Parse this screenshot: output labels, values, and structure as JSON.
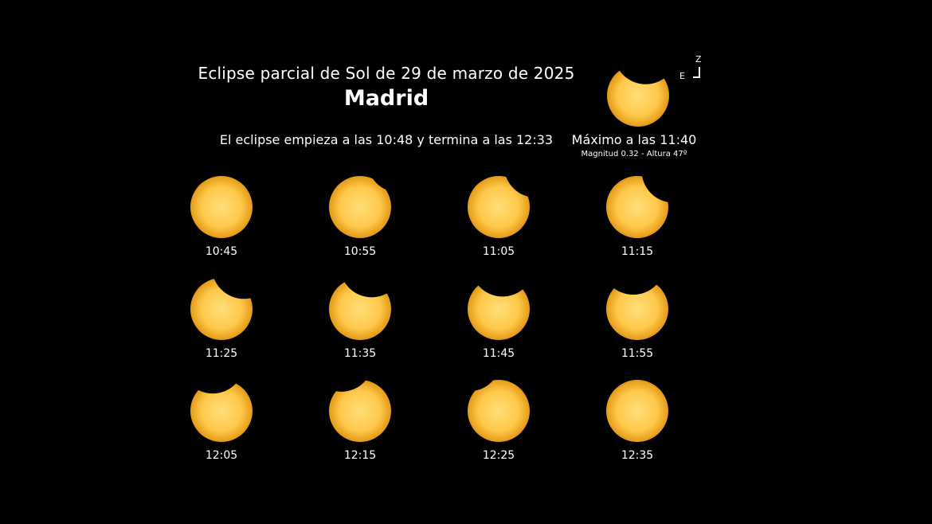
{
  "title": "Eclipse parcial de Sol de 29 de marzo de 2025",
  "city": "Madrid",
  "span_text": "El eclipse empieza a las 10:48 y termina a las 12:33",
  "maximum": {
    "time_text": "Máximo a las 11:40",
    "details_text": "Magnitud 0.32 - Altura 47º",
    "coverage": 0.32
  },
  "orientation": {
    "north": "Z",
    "east": "E"
  },
  "colors": {
    "sun_center": "#ffdf7a",
    "sun_edge": "#e39a16",
    "background": "#000000"
  },
  "phases": [
    {
      "time": "10:45",
      "coverage": 0.0
    },
    {
      "time": "10:55",
      "coverage": 0.05
    },
    {
      "time": "11:05",
      "coverage": 0.13
    },
    {
      "time": "11:15",
      "coverage": 0.2
    },
    {
      "time": "11:25",
      "coverage": 0.26
    },
    {
      "time": "11:35",
      "coverage": 0.3
    },
    {
      "time": "11:45",
      "coverage": 0.31
    },
    {
      "time": "11:55",
      "coverage": 0.28
    },
    {
      "time": "12:05",
      "coverage": 0.22
    },
    {
      "time": "12:15",
      "coverage": 0.15
    },
    {
      "time": "12:25",
      "coverage": 0.07
    },
    {
      "time": "12:35",
      "coverage": 0.0
    }
  ]
}
